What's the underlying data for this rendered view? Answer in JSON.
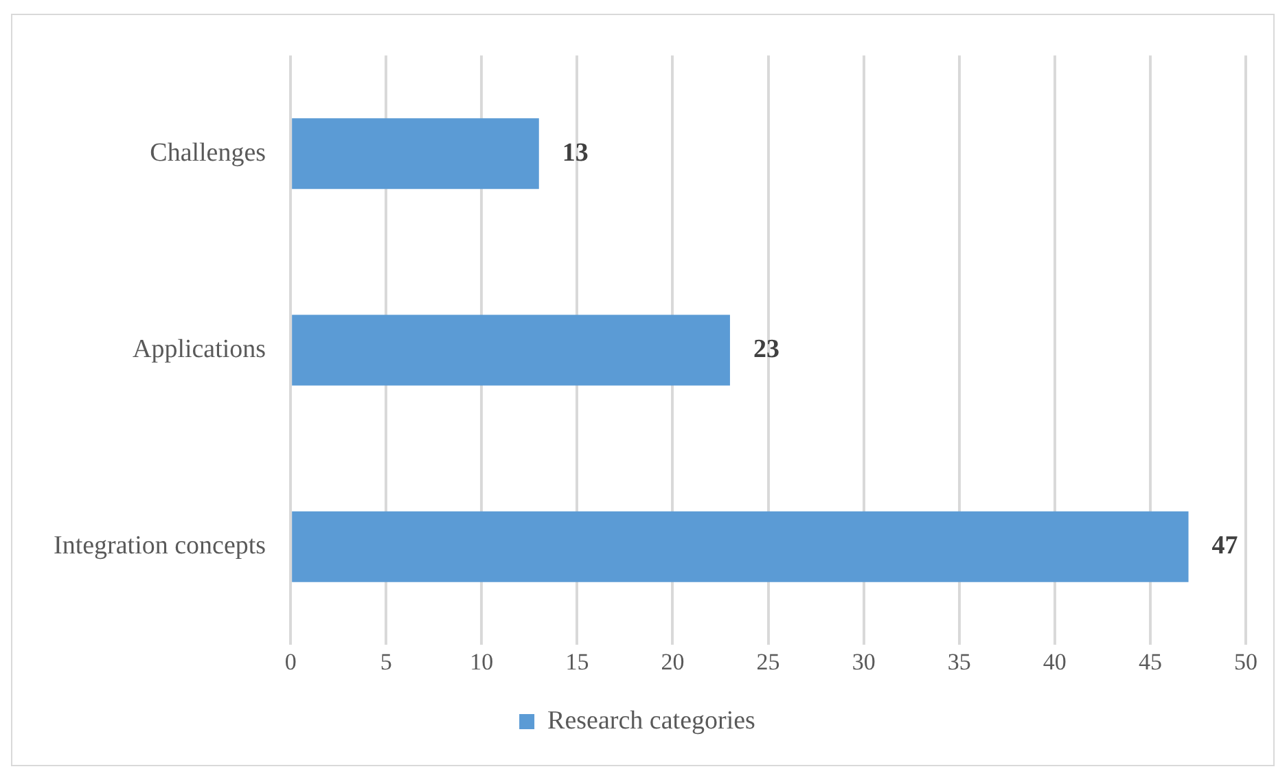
{
  "chart_data": {
    "type": "bar",
    "orientation": "horizontal",
    "categories": [
      "Challenges",
      "Applications",
      "Integration concepts"
    ],
    "series": [
      {
        "name": "Research categories",
        "color": "#5b9bd5",
        "values": [
          13,
          23,
          47
        ]
      }
    ],
    "xlim": [
      0,
      50
    ],
    "xticks": [
      0,
      5,
      10,
      15,
      20,
      25,
      30,
      35,
      40,
      45,
      50
    ],
    "grid": "x",
    "legend": "bottom",
    "data_labels": true
  }
}
